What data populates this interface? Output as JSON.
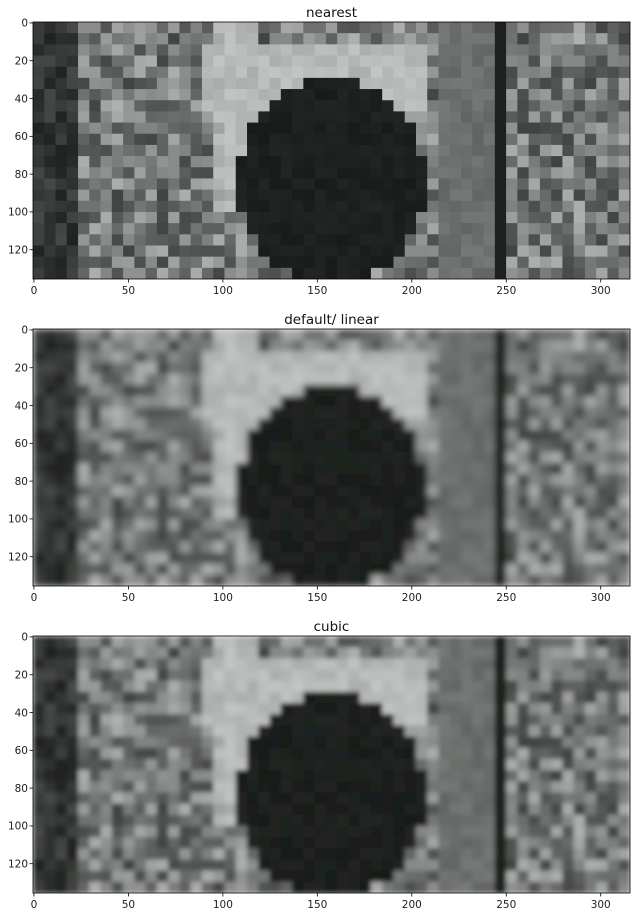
{
  "chart_data": [
    {
      "type": "heatmap",
      "title": "nearest",
      "xlabel": "",
      "ylabel": "",
      "xlim": [
        -0.5,
        315.5
      ],
      "ylim": [
        135.5,
        -0.5
      ],
      "xticks": [
        0,
        50,
        100,
        150,
        200,
        250,
        300
      ],
      "yticks": [
        0,
        20,
        40,
        60,
        80,
        100,
        120
      ],
      "interpolation": "nearest",
      "colormap": "grayscale"
    },
    {
      "type": "heatmap",
      "title": "default/ linear",
      "xlabel": "",
      "ylabel": "",
      "xlim": [
        -0.5,
        315.5
      ],
      "ylim": [
        135.5,
        -0.5
      ],
      "xticks": [
        0,
        50,
        100,
        150,
        200,
        250,
        300
      ],
      "yticks": [
        0,
        20,
        40,
        60,
        80,
        100,
        120
      ],
      "interpolation": "linear",
      "colormap": "grayscale"
    },
    {
      "type": "heatmap",
      "title": "cubic",
      "xlabel": "",
      "ylabel": "",
      "xlim": [
        -0.5,
        315.5
      ],
      "ylim": [
        135.5,
        -0.5
      ],
      "xticks": [
        0,
        50,
        100,
        150,
        200,
        250,
        300
      ],
      "yticks": [
        0,
        20,
        40,
        60,
        80,
        100,
        120
      ],
      "interpolation": "cubic",
      "colormap": "grayscale"
    }
  ]
}
